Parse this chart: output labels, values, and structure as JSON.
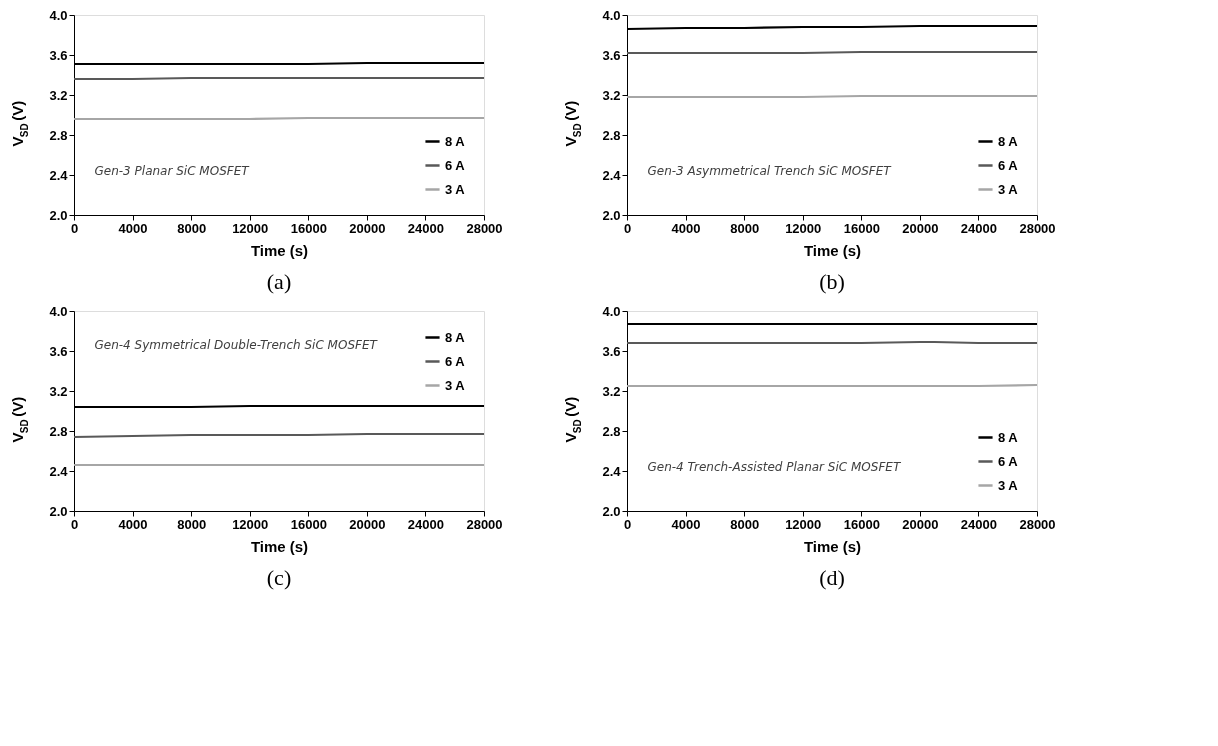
{
  "chart_data": [
    {
      "type": "line",
      "xlabel": "Time (s)",
      "ylabel": "V$_{SD}$ (V)",
      "annotations": [
        "Gen-3 Planar SiC MOSFET",
        "(a)"
      ],
      "x": [
        0,
        4000,
        8000,
        12000,
        16000,
        20000,
        24000,
        28000
      ],
      "xlim": [
        0,
        28000
      ],
      "xticks": [
        0,
        4000,
        8000,
        12000,
        16000,
        20000,
        24000,
        28000
      ],
      "ylim": [
        2.0,
        4.0
      ],
      "yticks": [
        {
          "value": 2.0,
          "label": "2.0"
        },
        {
          "value": 2.4,
          "label": "2.4"
        },
        {
          "value": 2.8,
          "label": "2.8"
        },
        {
          "value": 3.2,
          "label": "3.2"
        },
        {
          "value": 3.6,
          "label": "3.6"
        },
        {
          "value": 4.0,
          "label": "4.0"
        }
      ],
      "grid": false,
      "legend": "bottom right",
      "line_style": "solid",
      "marker": "none",
      "series": [
        {
          "name": "8 A",
          "color": "#000000",
          "values": [
            3.51,
            3.51,
            3.51,
            3.51,
            3.51,
            3.52,
            3.52,
            3.52
          ]
        },
        {
          "name": "6 A",
          "color": "#595959",
          "values": [
            3.36,
            3.36,
            3.37,
            3.37,
            3.37,
            3.37,
            3.37,
            3.37
          ]
        },
        {
          "name": "3 A",
          "color": "#a6a6a6",
          "values": [
            2.96,
            2.96,
            2.96,
            2.96,
            2.97,
            2.97,
            2.97,
            2.97
          ]
        }
      ]
    },
    {
      "type": "line",
      "xlabel": "Time (s)",
      "ylabel": "V$_{SD}$ (V)",
      "annotations": [
        "Gen-3 Asymmetrical Trench SiC MOSFET",
        "(b)"
      ],
      "x": [
        0,
        4000,
        8000,
        12000,
        16000,
        20000,
        24000,
        28000
      ],
      "xlim": [
        0,
        28000
      ],
      "xticks": [
        0,
        4000,
        8000,
        12000,
        16000,
        20000,
        24000,
        28000
      ],
      "ylim": [
        2.0,
        4.0
      ],
      "yticks": [
        {
          "value": 2.0,
          "label": "2.0"
        },
        {
          "value": 2.4,
          "label": "2.4"
        },
        {
          "value": 2.8,
          "label": "2.8"
        },
        {
          "value": 3.2,
          "label": "3.2"
        },
        {
          "value": 3.6,
          "label": "3.6"
        },
        {
          "value": 4.0,
          "label": "4.0"
        }
      ],
      "grid": false,
      "legend": "bottom right",
      "line_style": "solid",
      "marker": "none",
      "series": [
        {
          "name": "8 A",
          "color": "#000000",
          "values": [
            3.86,
            3.87,
            3.87,
            3.88,
            3.88,
            3.89,
            3.89,
            3.89
          ]
        },
        {
          "name": "6 A",
          "color": "#595959",
          "values": [
            3.62,
            3.62,
            3.62,
            3.62,
            3.63,
            3.63,
            3.63,
            3.63
          ]
        },
        {
          "name": "3 A",
          "color": "#a6a6a6",
          "values": [
            3.18,
            3.18,
            3.18,
            3.18,
            3.19,
            3.19,
            3.19,
            3.19
          ]
        }
      ]
    },
    {
      "type": "line",
      "xlabel": "Time (s)",
      "ylabel": "V$_{SD}$ (V)",
      "annotations": [
        "Gen-4 Symmetrical Double-Trench SiC MOSFET",
        "(c)"
      ],
      "x": [
        0,
        4000,
        8000,
        12000,
        16000,
        20000,
        24000,
        28000
      ],
      "xlim": [
        0,
        28000
      ],
      "xticks": [
        0,
        4000,
        8000,
        12000,
        16000,
        20000,
        24000,
        28000
      ],
      "ylim": [
        2.0,
        4.0
      ],
      "yticks": [
        {
          "value": 2.0,
          "label": "2.0"
        },
        {
          "value": 2.4,
          "label": "2.4"
        },
        {
          "value": 2.8,
          "label": "2.8"
        },
        {
          "value": 3.2,
          "label": "3.2"
        },
        {
          "value": 3.6,
          "label": "3.6"
        },
        {
          "value": 4.0,
          "label": "4.0"
        }
      ],
      "grid": false,
      "legend": "top right",
      "line_style": "solid",
      "marker": "none",
      "series": [
        {
          "name": "8 A",
          "color": "#000000",
          "values": [
            3.04,
            3.04,
            3.04,
            3.05,
            3.05,
            3.05,
            3.05,
            3.05
          ]
        },
        {
          "name": "6 A",
          "color": "#595959",
          "values": [
            2.74,
            2.75,
            2.76,
            2.76,
            2.76,
            2.77,
            2.77,
            2.77
          ]
        },
        {
          "name": "3 A",
          "color": "#a6a6a6",
          "values": [
            2.46,
            2.46,
            2.46,
            2.46,
            2.46,
            2.46,
            2.46,
            2.46
          ]
        }
      ]
    },
    {
      "type": "line",
      "xlabel": "Time (s)",
      "ylabel": "V$_{SD}$ (V)",
      "annotations": [
        "Gen-4 Trench-Assisted Planar SiC MOSFET",
        "(d)"
      ],
      "x": [
        0,
        4000,
        8000,
        12000,
        16000,
        20000,
        21000,
        24000,
        28000
      ],
      "xlim": [
        0,
        28000
      ],
      "xticks": [
        0,
        4000,
        8000,
        12000,
        16000,
        20000,
        24000,
        28000
      ],
      "ylim": [
        2.0,
        4.0
      ],
      "yticks": [
        {
          "value": 2.0,
          "label": "2.0"
        },
        {
          "value": 2.4,
          "label": "2.4"
        },
        {
          "value": 2.8,
          "label": "2.8"
        },
        {
          "value": 3.2,
          "label": "3.2"
        },
        {
          "value": 3.6,
          "label": "3.6"
        },
        {
          "value": 4.0,
          "label": "4.0"
        }
      ],
      "grid": false,
      "legend": "bottom right",
      "line_style": "solid",
      "marker": "none",
      "series": [
        {
          "name": "8 A",
          "color": "#000000",
          "values": [
            3.87,
            3.87,
            3.87,
            3.87,
            3.87,
            3.87,
            3.87,
            3.87,
            3.87
          ]
        },
        {
          "name": "6 A",
          "color": "#595959",
          "values": [
            3.68,
            3.68,
            3.68,
            3.68,
            3.68,
            3.69,
            3.69,
            3.68,
            3.68
          ]
        },
        {
          "name": "3 A",
          "color": "#a6a6a6",
          "values": [
            3.25,
            3.25,
            3.25,
            3.25,
            3.25,
            3.25,
            3.25,
            3.25,
            3.26
          ]
        }
      ]
    }
  ]
}
